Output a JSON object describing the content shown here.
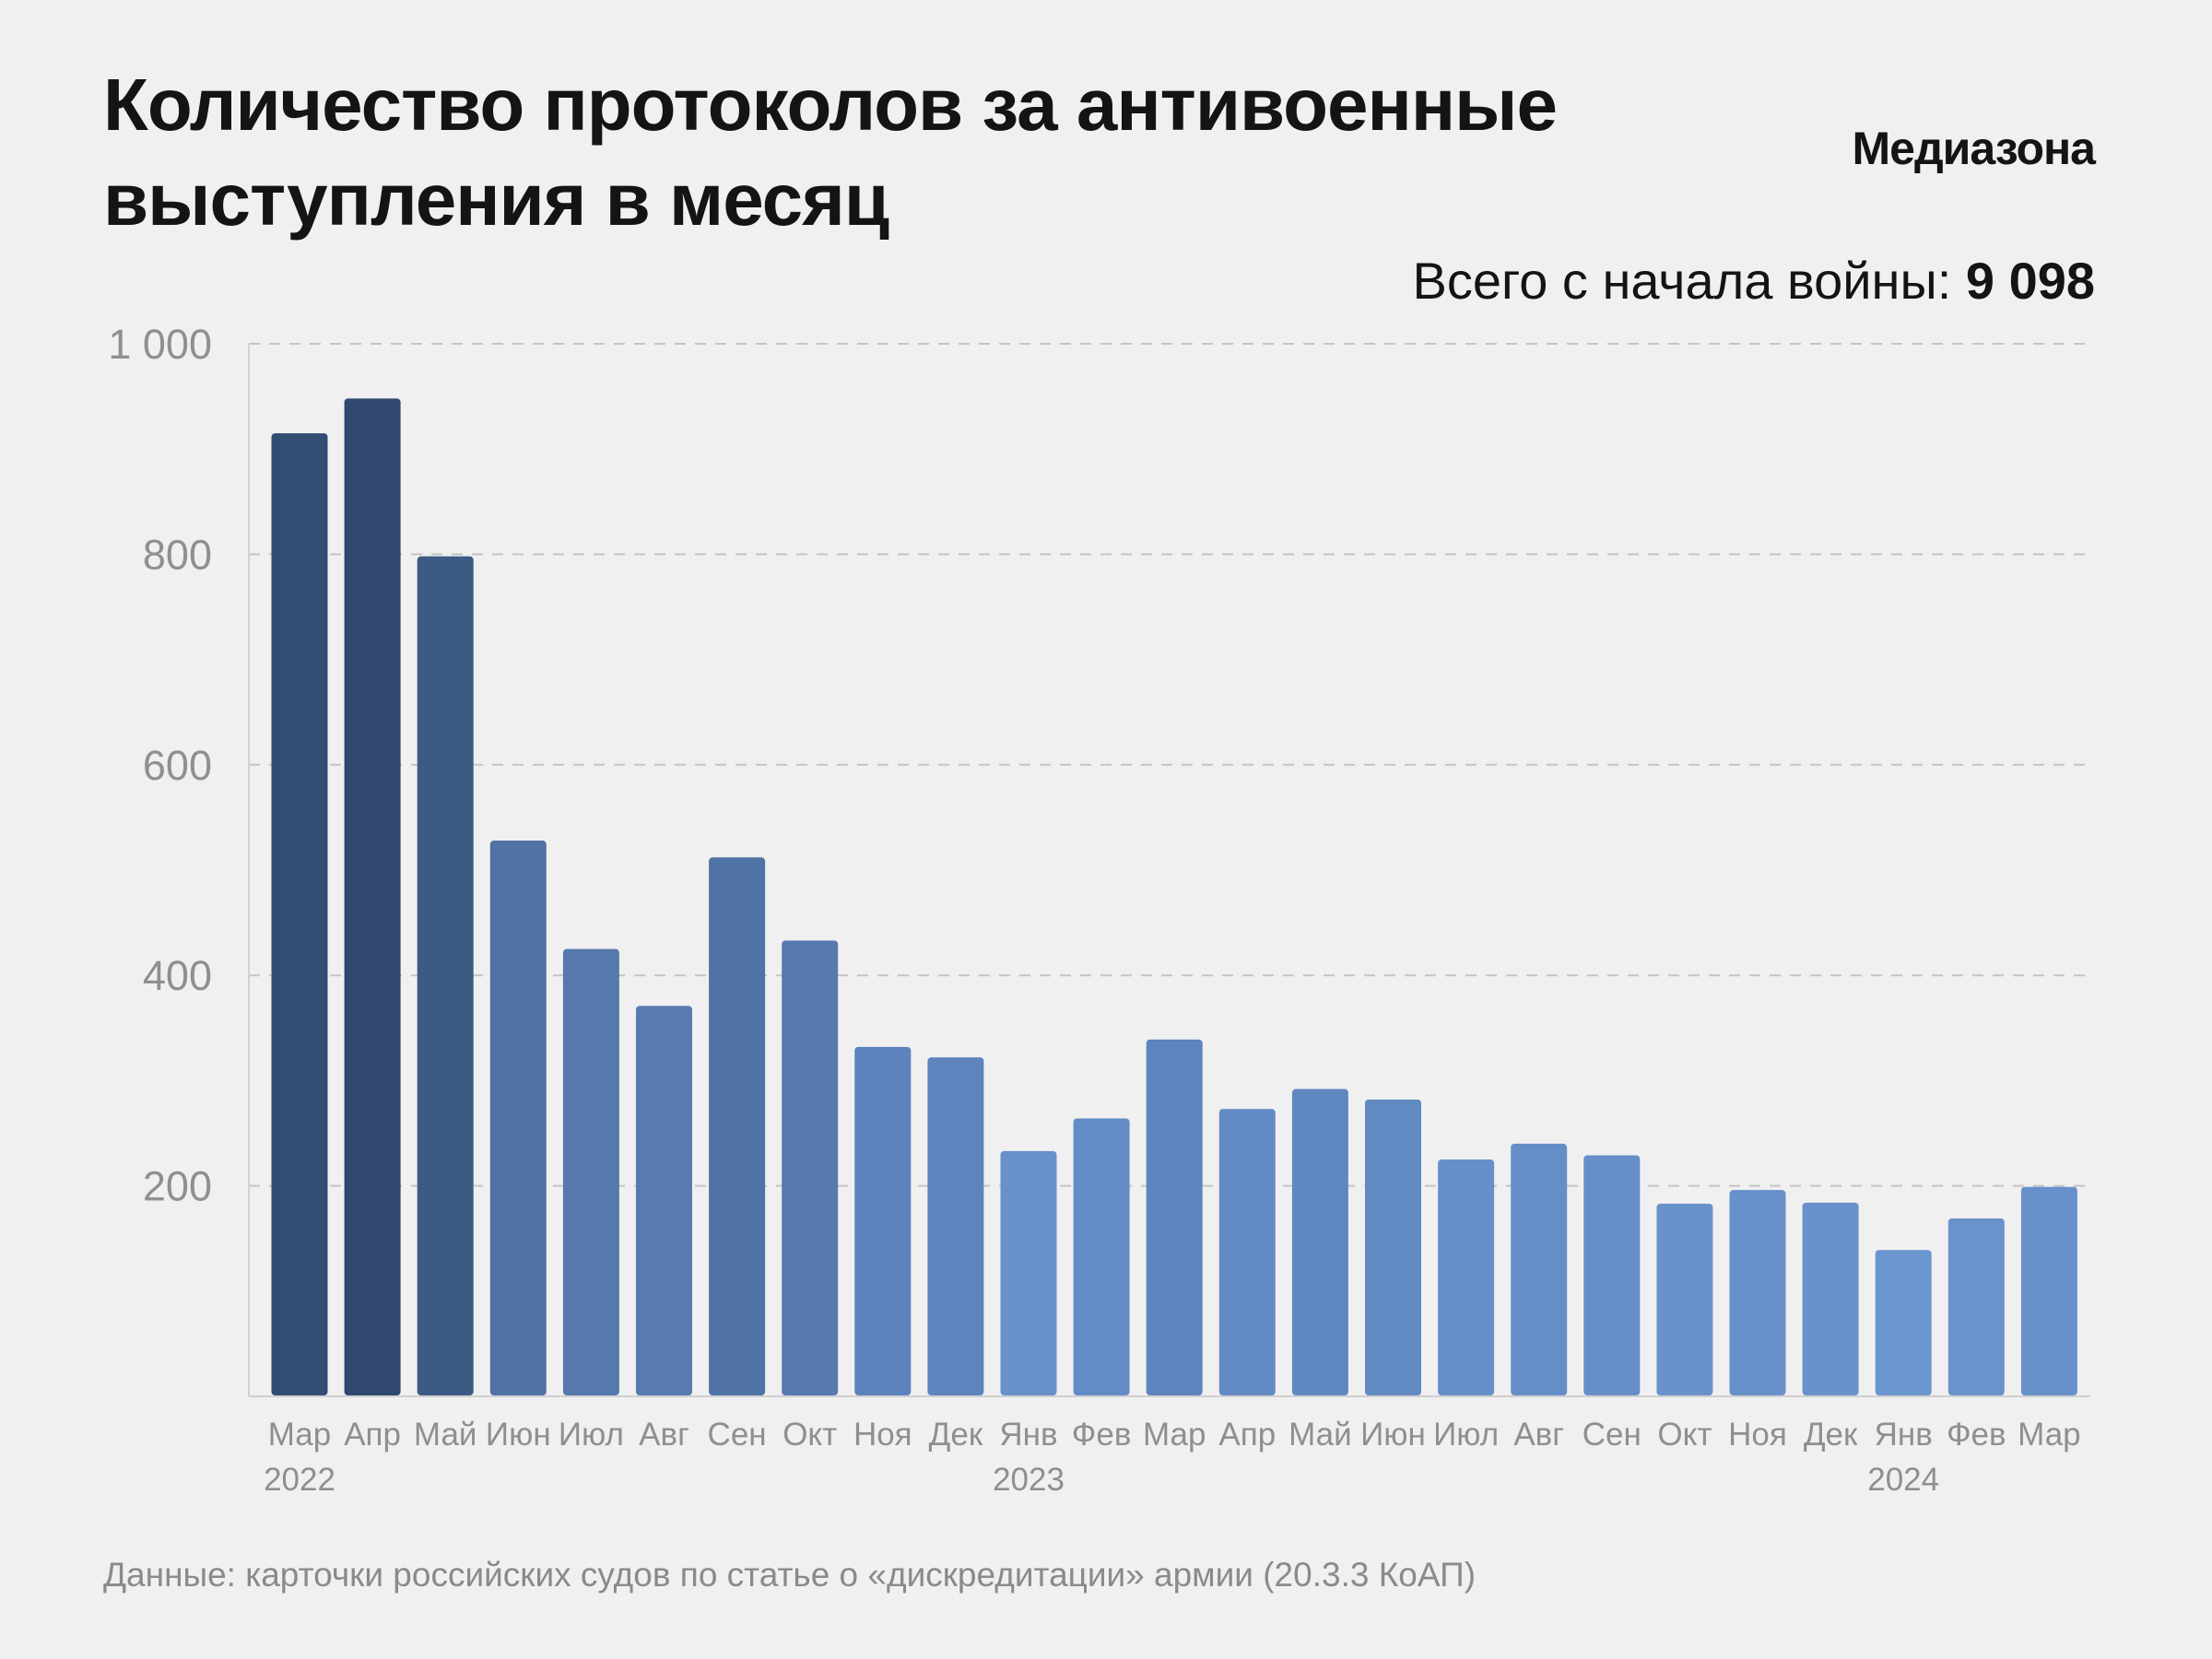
{
  "header": {
    "title": "Количество протоколов за антивоенные выступления в месяц",
    "brand": "Медиазона",
    "total_label": "Всего с начала войны: ",
    "total_value": "9 098"
  },
  "footer": {
    "source": "Данные: карточки российских судов по статье о «дискредитации» армии (20.3.3 КоАП)"
  },
  "chart_data": {
    "type": "bar",
    "title": "Количество протоколов за антивоенные выступления в месяц",
    "xlabel": "",
    "ylabel": "",
    "ylim": [
      0,
      1000
    ],
    "yticks": [
      200,
      400,
      600,
      800,
      1000
    ],
    "ytick_labels": [
      "200",
      "400",
      "600",
      "800",
      "1 000"
    ],
    "grid": true,
    "categories": [
      "Мар",
      "Апр",
      "Май",
      "Июн",
      "Июл",
      "Авг",
      "Сен",
      "Окт",
      "Ноя",
      "Дек",
      "Янв",
      "Фев",
      "Мар",
      "Апр",
      "Май",
      "Июн",
      "Июл",
      "Авг",
      "Сен",
      "Окт",
      "Ноя",
      "Дек",
      "Янв",
      "Фев",
      "Мар"
    ],
    "values": [
      915,
      948,
      798,
      528,
      425,
      371,
      512,
      433,
      332,
      322,
      233,
      264,
      339,
      273,
      292,
      282,
      225,
      240,
      229,
      183,
      196,
      184,
      139,
      169,
      199
    ],
    "colors": [
      "#314d74",
      "#30476e",
      "#3c5b84",
      "#5072a4",
      "#5679ad",
      "#577bb0",
      "#5073a5",
      "#5679ae",
      "#5c83bc",
      "#5d84bd",
      "#6891ca",
      "#638cc6",
      "#5d84bd",
      "#628bc4",
      "#5f88c1",
      "#618ac3",
      "#6790ca",
      "#658ec8",
      "#668fc9",
      "#6992cc",
      "#6891cb",
      "#6992cc",
      "#6b95cf",
      "#6a93cd",
      "#6891cb"
    ],
    "year_labels": [
      {
        "index": 0,
        "label": "2022"
      },
      {
        "index": 10,
        "label": "2023"
      },
      {
        "index": 22,
        "label": "2024"
      }
    ]
  }
}
